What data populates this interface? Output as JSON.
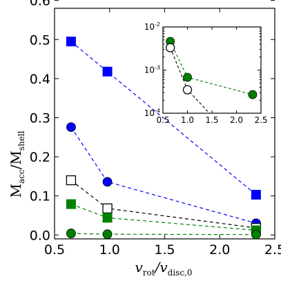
{
  "chart_data": [
    {
      "type": "line",
      "ylabel_main": "M",
      "ylabel_sub1": "acc",
      "ylabel_sep": "/M",
      "ylabel_sub2": "shell",
      "xlabel_main1": "v",
      "xlabel_sub1": "rot",
      "xlabel_sep": "/v",
      "xlabel_sub2": "disc,0",
      "xlim": [
        0.5,
        2.5
      ],
      "ylim": [
        -0.01,
        0.58
      ],
      "xticks": [
        "0.5",
        "1.0",
        "1.5",
        "2.0",
        "2.5"
      ],
      "yticks": [
        "0.0",
        "0.1",
        "0.2",
        "0.3",
        "0.4",
        "0.5",
        "0.6"
      ],
      "xtick_values": [
        0.5,
        1.0,
        1.5,
        2.0,
        2.5
      ],
      "ytick_values": [
        0.0,
        0.1,
        0.2,
        0.3,
        0.4,
        0.5,
        0.6
      ],
      "series": [
        {
          "marker": "square",
          "color": "#0000ff",
          "filled": true,
          "x": [
            0.65,
            0.98,
            2.33
          ],
          "y": [
            0.495,
            0.418,
            0.103
          ]
        },
        {
          "marker": "circle",
          "color": "#0000ff",
          "filled": true,
          "x": [
            0.65,
            0.98,
            2.33
          ],
          "y": [
            0.276,
            0.136,
            0.03
          ]
        },
        {
          "marker": "square",
          "color": "#000000",
          "filled": false,
          "x": [
            0.65,
            0.98,
            2.33
          ],
          "y": [
            0.14,
            0.068,
            0.018
          ]
        },
        {
          "marker": "square",
          "color": "#008000",
          "filled": true,
          "x": [
            0.65,
            0.98,
            2.33
          ],
          "y": [
            0.079,
            0.044,
            0.012
          ]
        },
        {
          "marker": "circle",
          "color": "#008000",
          "filled": true,
          "x": [
            0.65,
            0.98,
            2.33
          ],
          "y": [
            0.004,
            0.002,
            0.001
          ]
        }
      ]
    },
    {
      "type": "line",
      "scale": "log",
      "xlim": [
        0.5,
        2.5
      ],
      "ylim": [
        0.0001,
        0.01
      ],
      "xticks": [
        "0.5",
        "1.0",
        "1.5",
        "2.0",
        "2.5"
      ],
      "xtick_values": [
        0.5,
        1.0,
        1.5,
        2.0,
        2.5
      ],
      "yticks_base": "10",
      "yticks_exp": [
        "-4",
        "-3",
        "-2"
      ],
      "ytick_values": [
        0.0001,
        0.001,
        0.01
      ],
      "series": [
        {
          "marker": "circle",
          "color": "#008000",
          "filled": true,
          "x": [
            0.65,
            1.0,
            2.33
          ],
          "y": [
            0.0046,
            0.00068,
            0.00027
          ]
        },
        {
          "marker": "circle",
          "color": "#000000",
          "filled": false,
          "x": [
            0.65,
            1.0,
            1.45
          ],
          "y": [
            0.0033,
            0.00035,
            0.0001
          ]
        }
      ]
    }
  ]
}
